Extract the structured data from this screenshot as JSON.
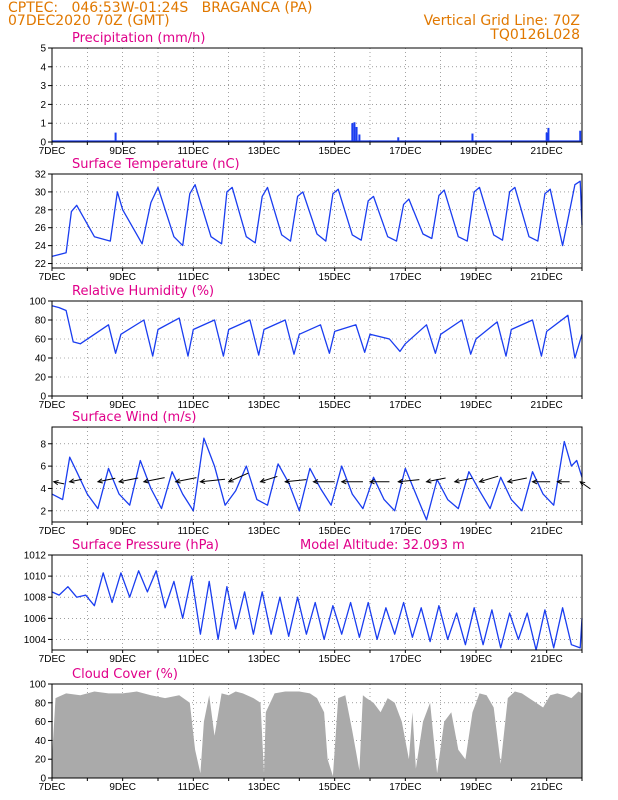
{
  "header": {
    "station": "CPTEC:   046:53W-01:24S   BRAGANCA (PA)",
    "run": "07DEC2020 70Z (GMT)",
    "grid_line": "Vertical Grid Line: 70Z",
    "code": "TQ0126L028"
  },
  "chart_data": [
    {
      "id": "precip",
      "type": "bar",
      "title": "Precipitation (mm/h)",
      "ylim": [
        0,
        5
      ],
      "yticks": [
        0,
        1,
        2,
        3,
        4,
        5
      ],
      "xlabels": [
        "7DEC",
        "9DEC",
        "11DEC",
        "13DEC",
        "15DEC",
        "17DEC",
        "19DEC",
        "21DEC"
      ],
      "x_start_day": 7,
      "x_end_day": 22,
      "color": "#1a3df0",
      "x": [
        8.8,
        15.5,
        15.56,
        15.62,
        15.7,
        16.8,
        18.9,
        21.0,
        21.05,
        21.95
      ],
      "values": [
        0.5,
        1.0,
        1.05,
        0.8,
        0.4,
        0.25,
        0.45,
        0.5,
        0.75,
        0.6
      ]
    },
    {
      "id": "temp",
      "type": "line",
      "title": "Surface Temperature (nC)",
      "ylim": [
        21.5,
        32
      ],
      "yticks": [
        22,
        24,
        26,
        28,
        30,
        32
      ],
      "xlabels": [
        "7DEC",
        "9DEC",
        "11DEC",
        "13DEC",
        "15DEC",
        "17DEC",
        "19DEC",
        "21DEC"
      ],
      "x_start_day": 7,
      "x_end_day": 22,
      "color": "#1a3df0",
      "x": [
        7.0,
        7.4,
        7.55,
        7.7,
        8.2,
        8.65,
        8.85,
        9.0,
        9.55,
        9.8,
        10.0,
        10.45,
        10.7,
        10.9,
        11.05,
        11.5,
        11.8,
        11.95,
        12.1,
        12.5,
        12.75,
        12.95,
        13.1,
        13.5,
        13.75,
        13.95,
        14.1,
        14.5,
        14.75,
        14.95,
        15.1,
        15.5,
        15.75,
        15.95,
        16.1,
        16.5,
        16.75,
        16.95,
        17.1,
        17.5,
        17.75,
        17.95,
        18.1,
        18.5,
        18.75,
        18.95,
        19.1,
        19.5,
        19.75,
        19.95,
        20.1,
        20.5,
        20.75,
        20.95,
        21.1,
        21.45,
        21.8,
        21.95,
        22.0
      ],
      "values": [
        22.8,
        23.2,
        27.8,
        28.5,
        25.0,
        24.5,
        30.0,
        28.0,
        24.2,
        28.8,
        30.5,
        25.0,
        24.0,
        29.8,
        30.8,
        25.0,
        24.2,
        30.0,
        30.5,
        25.0,
        24.3,
        29.5,
        30.5,
        25.2,
        24.5,
        29.5,
        30.0,
        25.3,
        24.5,
        29.8,
        30.3,
        25.2,
        24.6,
        29.0,
        29.5,
        25.0,
        24.5,
        28.6,
        29.2,
        25.3,
        24.8,
        29.6,
        30.2,
        25.0,
        24.5,
        30.0,
        30.5,
        25.2,
        24.6,
        30.0,
        30.5,
        25.0,
        24.5,
        29.8,
        30.3,
        24.0,
        30.8,
        31.2,
        26.3
      ]
    },
    {
      "id": "rh",
      "type": "line",
      "title": "Relative Humidity (%)",
      "ylim": [
        0,
        100
      ],
      "yticks": [
        0,
        20,
        40,
        60,
        80,
        100
      ],
      "xlabels": [
        "7DEC",
        "9DEC",
        "11DEC",
        "13DEC",
        "15DEC",
        "17DEC",
        "19DEC",
        "21DEC"
      ],
      "x_start_day": 7,
      "x_end_day": 22,
      "color": "#1a3df0",
      "x": [
        7.0,
        7.2,
        7.4,
        7.6,
        7.8,
        8.6,
        8.8,
        8.95,
        9.6,
        9.85,
        10.0,
        10.6,
        10.85,
        11.0,
        11.6,
        11.85,
        12.0,
        12.6,
        12.85,
        13.0,
        13.6,
        13.85,
        14.0,
        14.6,
        14.85,
        15.0,
        15.6,
        15.85,
        16.0,
        16.55,
        16.85,
        17.0,
        17.6,
        17.85,
        18.0,
        18.6,
        18.85,
        19.0,
        19.6,
        19.85,
        20.0,
        20.6,
        20.85,
        21.0,
        21.6,
        21.8,
        22.0
      ],
      "values": [
        95,
        93,
        90,
        57,
        55,
        75,
        45,
        65,
        80,
        42,
        70,
        82,
        42,
        70,
        80,
        42,
        70,
        80,
        43,
        70,
        80,
        44,
        65,
        75,
        45,
        68,
        75,
        46,
        65,
        60,
        47,
        55,
        75,
        45,
        65,
        80,
        44,
        60,
        78,
        42,
        70,
        80,
        42,
        68,
        85,
        40,
        65
      ]
    },
    {
      "id": "wind",
      "type": "line",
      "title": "Surface Wind (m/s)",
      "ylim": [
        1,
        9.5
      ],
      "yticks": [
        2,
        4,
        6,
        8
      ],
      "xlabels": [
        "7DEC",
        "9DEC",
        "11DEC",
        "13DEC",
        "15DEC",
        "17DEC",
        "19DEC",
        "21DEC"
      ],
      "x_start_day": 7,
      "x_end_day": 22,
      "color": "#1a3df0",
      "x": [
        7.0,
        7.3,
        7.5,
        7.7,
        8.0,
        8.3,
        8.6,
        8.9,
        9.2,
        9.5,
        9.8,
        10.1,
        10.4,
        10.7,
        11.0,
        11.3,
        11.6,
        11.9,
        12.2,
        12.5,
        12.8,
        13.1,
        13.4,
        13.7,
        14.0,
        14.3,
        14.6,
        14.9,
        15.2,
        15.5,
        15.8,
        16.1,
        16.4,
        16.7,
        17.0,
        17.3,
        17.6,
        17.9,
        18.2,
        18.5,
        18.8,
        19.1,
        19.4,
        19.7,
        20.0,
        20.3,
        20.6,
        20.9,
        21.2,
        21.5,
        21.7,
        21.85,
        22.0
      ],
      "values": [
        3.5,
        3.0,
        6.8,
        5.5,
        3.5,
        2.2,
        5.8,
        3.5,
        2.5,
        6.5,
        4.0,
        2.2,
        5.5,
        3.5,
        2.0,
        8.5,
        6.0,
        2.5,
        3.8,
        6.0,
        3.0,
        2.5,
        6.2,
        4.5,
        2.0,
        5.8,
        4.0,
        2.5,
        6.0,
        3.5,
        2.2,
        5.0,
        3.0,
        2.0,
        5.8,
        3.5,
        1.2,
        4.8,
        3.0,
        2.2,
        5.5,
        3.8,
        2.2,
        5.0,
        3.0,
        2.0,
        5.5,
        3.5,
        2.5,
        8.2,
        6.0,
        6.5,
        5.0
      ],
      "vectors": {
        "x": [
          7.05,
          7.5,
          8.3,
          8.9,
          9.6,
          10.5,
          11.2,
          12.0,
          12.9,
          13.6,
          14.4,
          15.2,
          16.0,
          16.8,
          17.6,
          18.4,
          19.1,
          19.9,
          20.6,
          21.3,
          21.95
        ],
        "u": [
          1.0,
          1.0,
          1.0,
          1.0,
          1.0,
          1.0,
          1.0,
          0.9,
          0.95,
          1.0,
          1.0,
          1.0,
          1.0,
          1.0,
          1.0,
          1.0,
          1.0,
          1.0,
          1.0,
          1.0,
          1.0
        ],
        "v": [
          0.2,
          -0.2,
          -0.2,
          -0.2,
          -0.2,
          -0.2,
          -0.1,
          -0.4,
          -0.3,
          -0.1,
          0.0,
          0.0,
          0.0,
          -0.1,
          -0.2,
          -0.2,
          -0.3,
          -0.2,
          0.0,
          0.0,
          0.7
        ],
        "length_days": [
          0.3,
          0.35,
          0.5,
          0.55,
          0.6,
          0.6,
          0.7,
          0.6,
          0.5,
          0.6,
          0.6,
          0.6,
          0.55,
          0.6,
          0.55,
          0.5,
          0.55,
          0.55,
          0.5,
          0.35,
          0.35
        ]
      }
    },
    {
      "id": "pres",
      "type": "line",
      "title": "Surface Pressure (hPa)",
      "subtitle": "Model Altitude: 32.093 m",
      "ylim": [
        1003,
        1012
      ],
      "yticks": [
        1004,
        1006,
        1008,
        1010,
        1012
      ],
      "xlabels": [
        "7DEC",
        "9DEC",
        "11DEC",
        "13DEC",
        "15DEC",
        "17DEC",
        "19DEC",
        "21DEC"
      ],
      "x_start_day": 7,
      "x_end_day": 22,
      "color": "#1a3df0",
      "x": [
        7.0,
        7.2,
        7.45,
        7.7,
        7.95,
        8.2,
        8.45,
        8.7,
        8.95,
        9.2,
        9.45,
        9.7,
        9.95,
        10.2,
        10.45,
        10.7,
        10.95,
        11.2,
        11.45,
        11.7,
        11.95,
        12.2,
        12.45,
        12.7,
        12.95,
        13.2,
        13.45,
        13.7,
        13.95,
        14.2,
        14.45,
        14.7,
        14.95,
        15.2,
        15.45,
        15.7,
        15.95,
        16.2,
        16.45,
        16.7,
        16.95,
        17.2,
        17.45,
        17.7,
        17.95,
        18.2,
        18.45,
        18.7,
        18.95,
        19.2,
        19.45,
        19.7,
        19.95,
        20.2,
        20.45,
        20.7,
        20.95,
        21.2,
        21.45,
        21.7,
        21.95,
        22.0
      ],
      "values": [
        1008.5,
        1008.2,
        1009.0,
        1008.0,
        1008.2,
        1007.2,
        1010.3,
        1007.5,
        1010.3,
        1008.0,
        1010.5,
        1008.5,
        1010.5,
        1007.0,
        1009.5,
        1006.0,
        1010.0,
        1004.5,
        1009.5,
        1004.0,
        1009.0,
        1005.0,
        1008.5,
        1004.5,
        1008.5,
        1004.5,
        1008.0,
        1004.3,
        1008.0,
        1004.5,
        1007.5,
        1004.0,
        1007.2,
        1004.5,
        1007.5,
        1004.2,
        1007.5,
        1004.0,
        1007.0,
        1004.5,
        1007.5,
        1004.2,
        1007.0,
        1003.8,
        1007.2,
        1004.0,
        1006.5,
        1003.5,
        1007.0,
        1003.5,
        1006.8,
        1003.2,
        1006.5,
        1004.0,
        1006.5,
        1003.0,
        1006.8,
        1003.2,
        1007.0,
        1003.5,
        1003.2,
        1006.0
      ]
    },
    {
      "id": "cloud",
      "type": "area",
      "title": "Cloud Cover (%)",
      "ylim": [
        0,
        100
      ],
      "yticks": [
        0,
        20,
        40,
        60,
        80,
        100
      ],
      "xlabels": [
        "7DEC",
        "9DEC",
        "11DEC",
        "13DEC",
        "15DEC",
        "17DEC",
        "19DEC",
        "21DEC"
      ],
      "x_start_day": 7,
      "x_end_day": 22,
      "color": "#aaaaaa",
      "x": [
        7.0,
        7.1,
        7.4,
        7.8,
        8.2,
        8.6,
        9.0,
        9.4,
        9.8,
        10.2,
        10.6,
        10.9,
        11.05,
        11.2,
        11.3,
        11.45,
        11.6,
        11.8,
        12.0,
        12.2,
        12.4,
        12.7,
        12.9,
        13.0,
        13.05,
        13.3,
        13.6,
        14.0,
        14.3,
        14.5,
        14.7,
        14.8,
        14.95,
        15.1,
        15.3,
        15.5,
        15.7,
        15.8,
        15.9,
        16.1,
        16.3,
        16.5,
        16.7,
        16.9,
        17.1,
        17.2,
        17.3,
        17.5,
        17.7,
        17.9,
        18.1,
        18.3,
        18.5,
        18.7,
        18.9,
        19.1,
        19.3,
        19.5,
        19.7,
        19.9,
        20.1,
        20.3,
        20.5,
        20.7,
        20.9,
        21.1,
        21.3,
        21.5,
        21.7,
        21.9,
        22.0
      ],
      "values": [
        20,
        85,
        90,
        88,
        92,
        90,
        90,
        92,
        88,
        85,
        88,
        80,
        30,
        5,
        60,
        88,
        45,
        90,
        88,
        92,
        90,
        85,
        80,
        5,
        70,
        90,
        92,
        92,
        90,
        85,
        70,
        20,
        2,
        85,
        88,
        50,
        8,
        88,
        85,
        80,
        70,
        85,
        80,
        60,
        20,
        70,
        10,
        60,
        80,
        5,
        60,
        70,
        30,
        20,
        70,
        90,
        88,
        75,
        15,
        85,
        92,
        90,
        85,
        80,
        75,
        88,
        90,
        88,
        85,
        92,
        90
      ]
    }
  ]
}
